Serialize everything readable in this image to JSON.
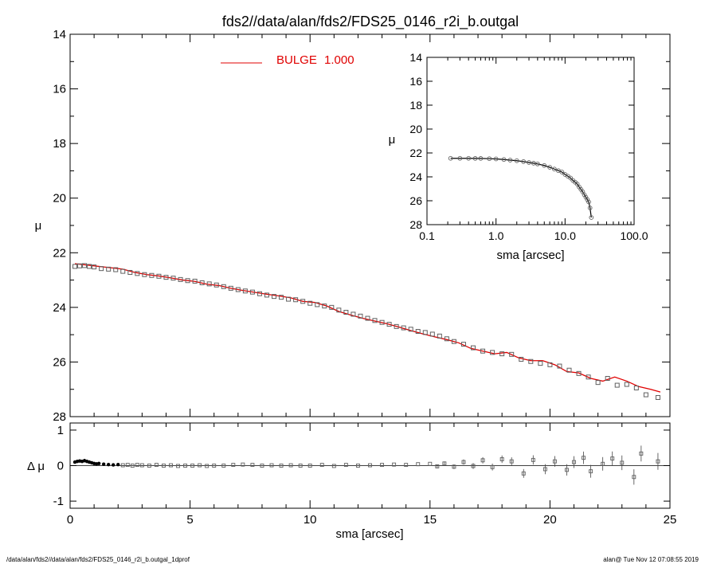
{
  "title": "fds2//data/alan/fds2/FDS25_0146_r2i_b.outgal",
  "footer_left": "/data/alan/fds2//data/alan/fds2/FDS25_0146_r2i_b.outgal_1dprof",
  "footer_right": "alan@  Tue Nov 12 07:08:55 2019",
  "colors": {
    "model": "#e00000",
    "points": "#606060",
    "residual": "#000000"
  },
  "chart_data": [
    {
      "id": "main",
      "type": "scatter",
      "xlabel": "",
      "ylabel": "μ",
      "xlim": [
        0,
        25
      ],
      "ylim": [
        28,
        14
      ],
      "xticks": [
        0,
        5,
        10,
        15,
        20,
        25
      ],
      "yticks": [
        14,
        16,
        18,
        20,
        22,
        24,
        26,
        28
      ],
      "legend": {
        "label": "BULGE",
        "value": "1.000",
        "placement": "top-center"
      },
      "series": [
        {
          "name": "BULGE  1.000",
          "kind": "line",
          "x": [
            0.2,
            0.7,
            1.2,
            1.7,
            2.2,
            2.7,
            3.2,
            3.7,
            4.2,
            4.7,
            5.2,
            5.7,
            6.2,
            6.7,
            7.2,
            7.7,
            8.2,
            8.7,
            9.2,
            9.7,
            10.2,
            10.7,
            11.2,
            11.7,
            12.2,
            12.7,
            13.2,
            13.7,
            14.2,
            14.7,
            15.2,
            15.7,
            16.2,
            16.7,
            17.2,
            17.7,
            18.2,
            18.7,
            19.2,
            19.7,
            20.2,
            20.7,
            21.2,
            21.7,
            22.2,
            22.7,
            23.2,
            23.7,
            24.2,
            24.6
          ],
          "y": [
            22.4,
            22.45,
            22.5,
            22.55,
            22.6,
            22.72,
            22.8,
            22.85,
            22.92,
            23.0,
            23.05,
            23.15,
            23.2,
            23.3,
            23.38,
            23.45,
            23.52,
            23.58,
            23.65,
            23.78,
            23.82,
            23.95,
            24.15,
            24.28,
            24.4,
            24.5,
            24.6,
            24.72,
            24.85,
            24.97,
            25.08,
            25.18,
            25.3,
            25.5,
            25.6,
            25.7,
            25.65,
            25.85,
            25.95,
            25.95,
            26.1,
            26.35,
            26.4,
            26.6,
            26.7,
            26.55,
            26.7,
            26.9,
            27.0,
            27.1
          ]
        },
        {
          "name": "data",
          "kind": "points",
          "x": [
            0.2,
            0.4,
            0.6,
            0.8,
            1.0,
            1.3,
            1.6,
            1.9,
            2.2,
            2.5,
            2.8,
            3.1,
            3.4,
            3.7,
            4.0,
            4.3,
            4.6,
            4.9,
            5.2,
            5.5,
            5.8,
            6.1,
            6.4,
            6.7,
            7.0,
            7.3,
            7.6,
            7.9,
            8.2,
            8.5,
            8.8,
            9.1,
            9.4,
            9.7,
            10.0,
            10.3,
            10.6,
            10.9,
            11.2,
            11.5,
            11.8,
            12.1,
            12.4,
            12.7,
            13.0,
            13.3,
            13.6,
            13.9,
            14.2,
            14.5,
            14.8,
            15.1,
            15.4,
            15.7,
            16.0,
            16.4,
            16.8,
            17.2,
            17.6,
            18.0,
            18.4,
            18.8,
            19.2,
            19.6,
            20.0,
            20.4,
            20.8,
            21.2,
            21.6,
            22.0,
            22.4,
            22.8,
            23.2,
            23.6,
            24.0,
            24.5
          ],
          "y": [
            22.5,
            22.48,
            22.47,
            22.5,
            22.52,
            22.58,
            22.6,
            22.62,
            22.68,
            22.72,
            22.76,
            22.8,
            22.83,
            22.86,
            22.9,
            22.93,
            22.98,
            23.02,
            23.04,
            23.1,
            23.14,
            23.18,
            23.24,
            23.3,
            23.35,
            23.4,
            23.44,
            23.5,
            23.55,
            23.6,
            23.63,
            23.7,
            23.72,
            23.78,
            23.85,
            23.9,
            23.95,
            24.0,
            24.1,
            24.18,
            24.25,
            24.32,
            24.4,
            24.48,
            24.55,
            24.62,
            24.7,
            24.75,
            24.8,
            24.88,
            24.92,
            24.98,
            25.05,
            25.15,
            25.25,
            25.35,
            25.48,
            25.6,
            25.65,
            25.7,
            25.72,
            25.9,
            25.98,
            26.05,
            26.1,
            26.15,
            26.3,
            26.42,
            26.55,
            26.75,
            26.6,
            26.85,
            26.82,
            26.95,
            27.2,
            27.3
          ]
        }
      ]
    },
    {
      "id": "residual",
      "type": "scatter",
      "xlabel": "sma [arcsec]",
      "ylabel": "Δ μ",
      "xlim": [
        0,
        25
      ],
      "ylim": [
        -1.2,
        1.2
      ],
      "xticks": [
        0,
        5,
        10,
        15,
        20,
        25
      ],
      "yticks": [
        -1,
        0,
        1
      ],
      "series": [
        {
          "name": "residual",
          "x": [
            0.2,
            0.3,
            0.4,
            0.5,
            0.6,
            0.7,
            0.8,
            0.9,
            1.0,
            1.1,
            1.2,
            1.4,
            1.6,
            1.8,
            2.0,
            2.2,
            2.4,
            2.6,
            2.8,
            3.0,
            3.3,
            3.6,
            3.9,
            4.2,
            4.5,
            4.8,
            5.1,
            5.4,
            5.7,
            6.0,
            6.4,
            6.8,
            7.2,
            7.6,
            8.0,
            8.4,
            8.8,
            9.2,
            9.6,
            10.0,
            10.5,
            11.0,
            11.5,
            12.0,
            12.5,
            13.0,
            13.5,
            14.0,
            14.5,
            15.0,
            15.3,
            15.6,
            16.0,
            16.4,
            16.8,
            17.2,
            17.6,
            18.0,
            18.4,
            18.9,
            19.3,
            19.8,
            20.2,
            20.7,
            21.0,
            21.4,
            21.7,
            22.2,
            22.6,
            23.0,
            23.5,
            23.8,
            24.5
          ],
          "y": [
            0.1,
            0.12,
            0.13,
            0.12,
            0.14,
            0.12,
            0.1,
            0.08,
            0.06,
            0.05,
            0.06,
            0.04,
            0.03,
            0.02,
            0.03,
            0.01,
            0.02,
            0.0,
            0.02,
            0.01,
            0.0,
            0.02,
            0.0,
            0.01,
            -0.01,
            0.0,
            0.0,
            0.01,
            -0.01,
            0.0,
            0.0,
            0.02,
            0.03,
            0.02,
            0.0,
            0.01,
            0.0,
            0.01,
            0.0,
            0.0,
            0.02,
            -0.01,
            0.02,
            0.0,
            0.01,
            0.02,
            0.03,
            0.02,
            0.04,
            0.05,
            -0.02,
            0.06,
            -0.03,
            0.1,
            -0.01,
            0.15,
            -0.04,
            0.18,
            0.12,
            -0.22,
            0.16,
            -0.1,
            0.12,
            -0.12,
            0.1,
            0.22,
            -0.16,
            0.05,
            0.2,
            0.08,
            -0.32,
            0.34,
            0.12
          ]
        }
      ]
    },
    {
      "id": "inset",
      "type": "line",
      "xlabel": "sma [arcsec]",
      "ylabel": "μ",
      "xscale": "log",
      "xlim": [
        0.1,
        100
      ],
      "ylim": [
        28,
        14
      ],
      "xticks": [
        0.1,
        1.0,
        10.0,
        100.0
      ],
      "xticklabels": [
        "0.1",
        "1.0",
        "10.0",
        "100.0"
      ],
      "yticks": [
        14,
        16,
        18,
        20,
        22,
        24,
        26,
        28
      ],
      "series": [
        {
          "name": "profile",
          "x": [
            0.22,
            0.3,
            0.4,
            0.5,
            0.6,
            0.8,
            1.0,
            1.3,
            1.6,
            2.0,
            2.5,
            3.0,
            3.5,
            4.0,
            5.0,
            6.0,
            7.0,
            8.0,
            9.0,
            10.0,
            11.0,
            12.0,
            13.0,
            14.0,
            15.0,
            16.0,
            17.0,
            18.0,
            19.0,
            20.0,
            21.0,
            22.0,
            23.0,
            24.0
          ],
          "y": [
            22.45,
            22.45,
            22.45,
            22.46,
            22.46,
            22.48,
            22.5,
            22.55,
            22.6,
            22.65,
            22.72,
            22.8,
            22.86,
            22.92,
            23.05,
            23.2,
            23.35,
            23.48,
            23.6,
            23.8,
            23.95,
            24.1,
            24.3,
            24.45,
            24.6,
            24.85,
            25.05,
            25.25,
            25.5,
            25.7,
            25.9,
            26.1,
            26.6,
            27.4
          ]
        }
      ]
    }
  ]
}
